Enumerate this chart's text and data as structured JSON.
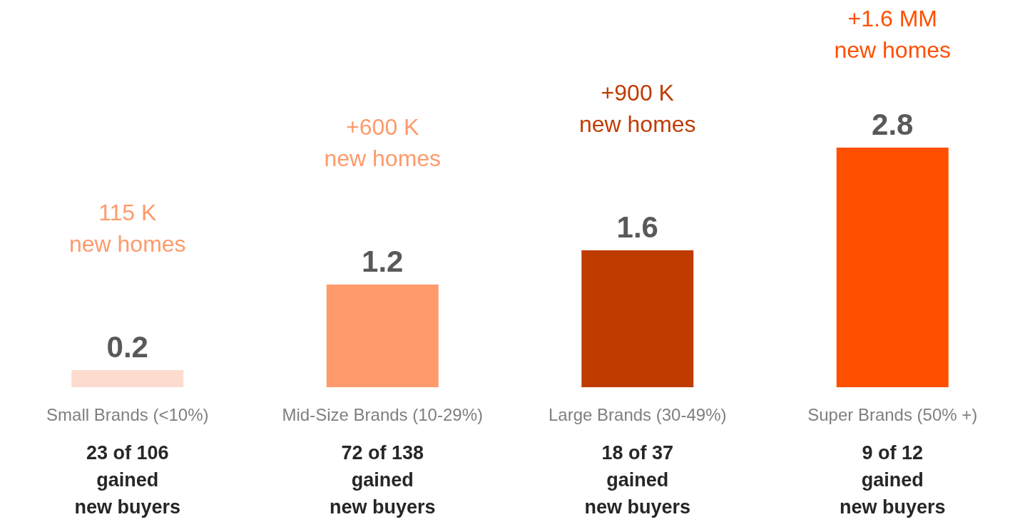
{
  "chart_data": {
    "type": "bar",
    "categories": [
      "Small Brands (<10%)",
      "Mid-Size Brands (10-29%)",
      "Large Brands (30-49%)",
      "Super Brands (50% +)"
    ],
    "values": [
      0.2,
      1.2,
      1.6,
      2.8
    ],
    "colors": [
      "#fddccf",
      "#fe9a6b",
      "#bf3c00",
      "#ff5000"
    ],
    "data_labels": true,
    "annotations": [
      "115 K\nnew homes",
      "+600 K\nnew homes",
      "+900 K\nnew homes",
      "+1.6 MM\nnew homes",
      "23 of 106\ngained\nnew buyers",
      "72 of 138\ngained\nnew buyers",
      "18 of 37\ngained\nnew buyers",
      "9 of 12\ngained\nnew buyers"
    ]
  }
}
